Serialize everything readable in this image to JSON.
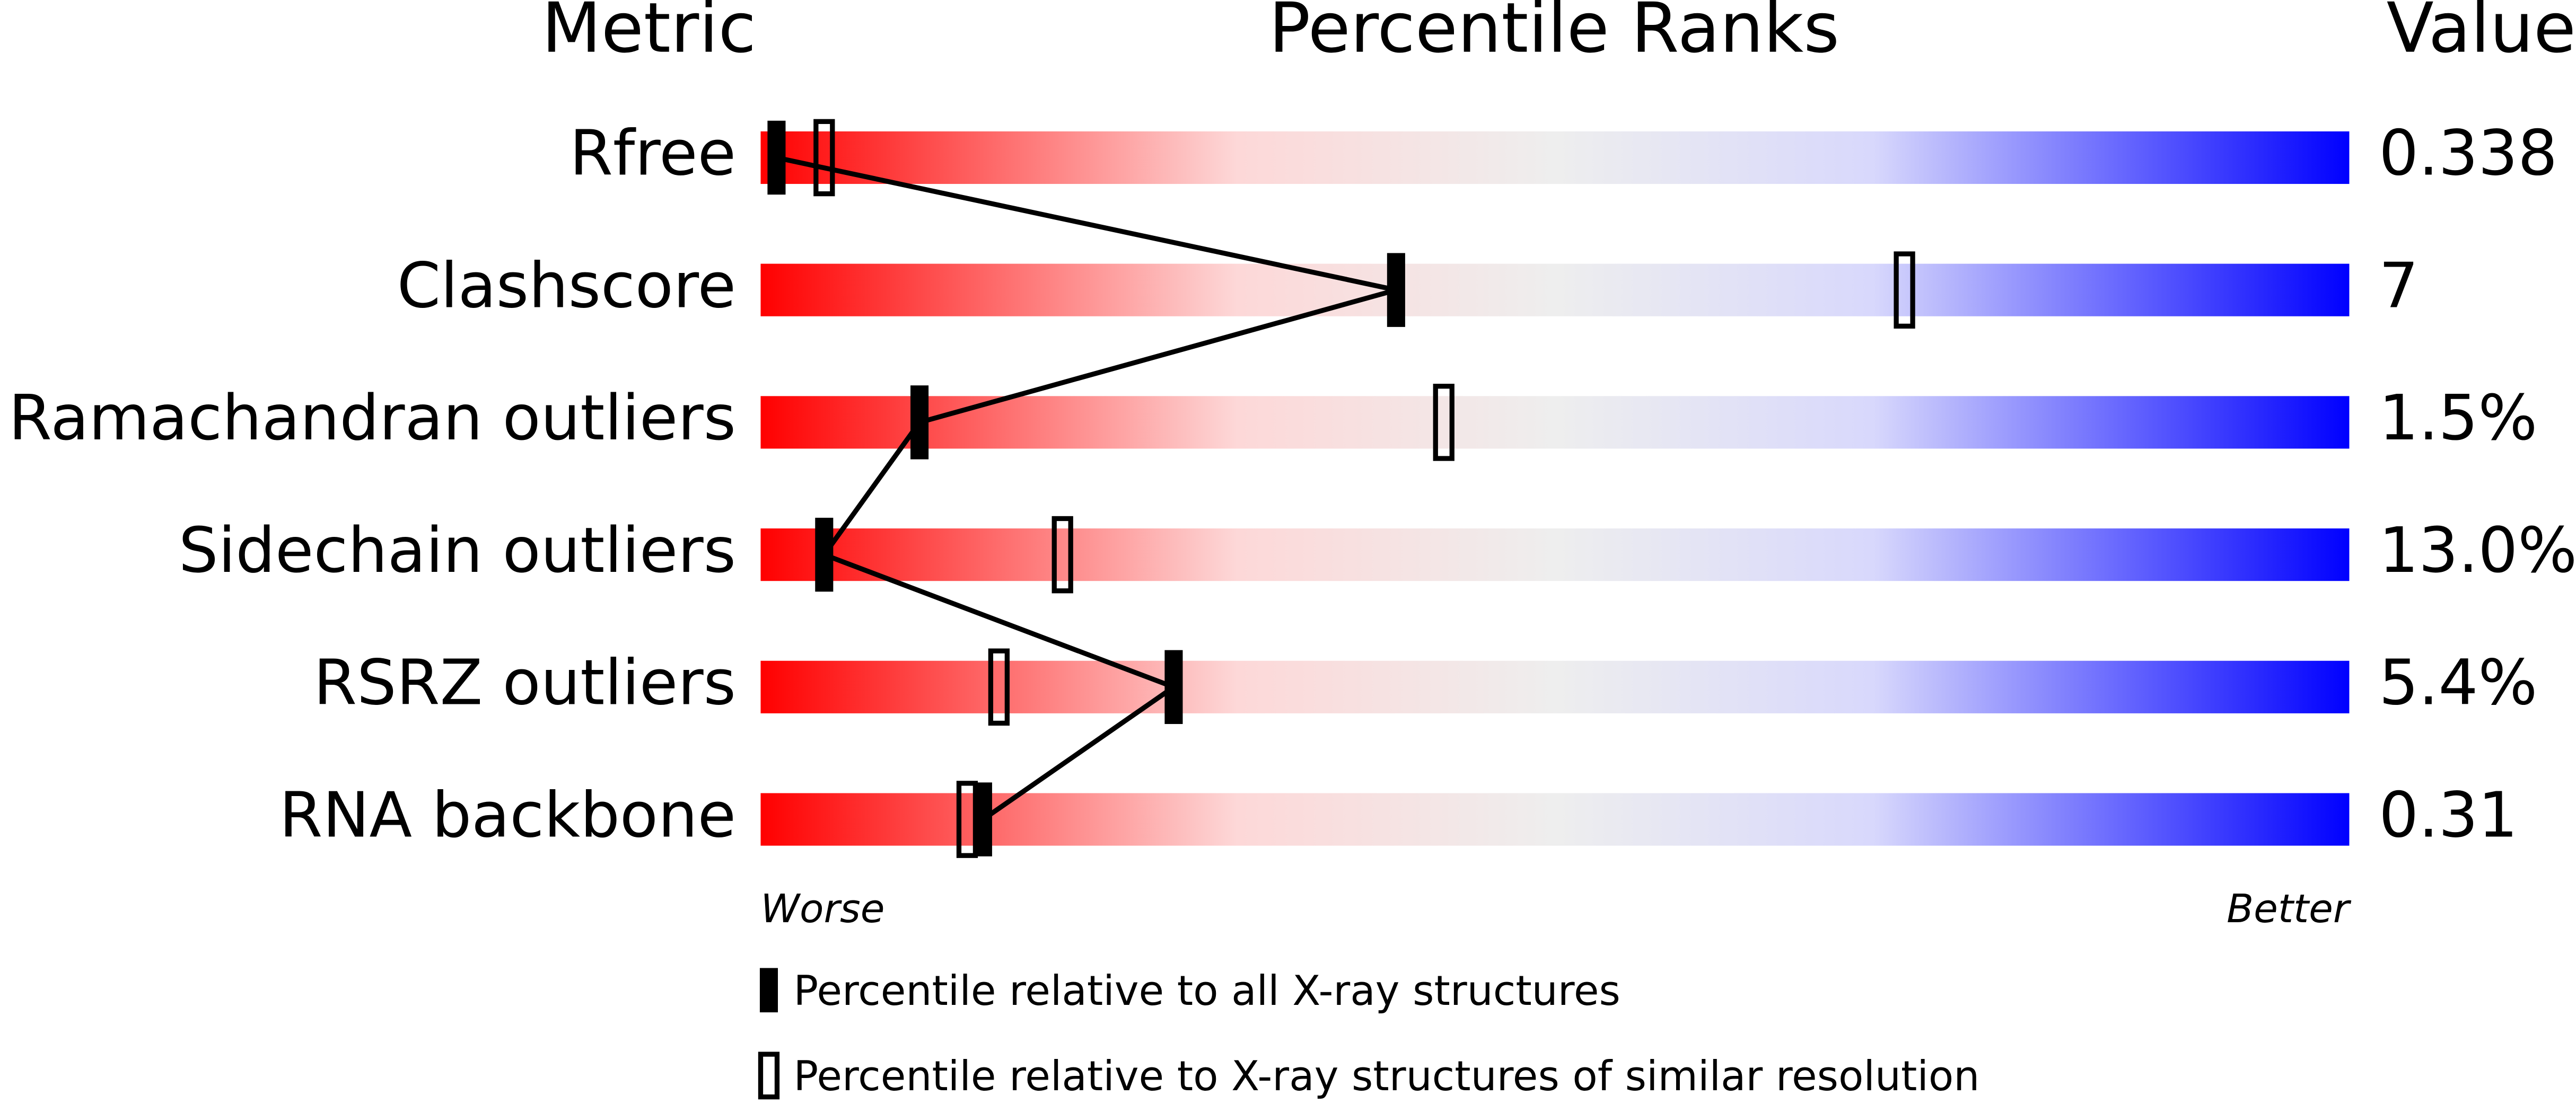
{
  "chart_data": {
    "type": "percentile-slider",
    "title": "Percentile Ranks",
    "metric_header": "Metric",
    "value_header": "Value",
    "categories": [
      "Rfree",
      "Clashscore",
      "Ramachandran outliers",
      "Sidechain outliers",
      "RSRZ outliers",
      "RNA backbone"
    ],
    "value_labels": [
      "0.338",
      "7",
      "1.5%",
      "13.0%",
      "5.4%",
      "0.31"
    ],
    "xlim": [
      0,
      100
    ],
    "worse_label": "Worse",
    "better_label": "Better",
    "series": [
      {
        "name": "Percentile relative to all X-ray structures",
        "color": "#000000",
        "filled": true,
        "values": [
          1,
          40,
          10,
          4,
          26,
          14
        ]
      },
      {
        "name": "Percentile relative to X-ray structures of similar resolution",
        "color": "#000000",
        "filled": false,
        "values": [
          4,
          72,
          43,
          19,
          15,
          13
        ]
      }
    ]
  }
}
